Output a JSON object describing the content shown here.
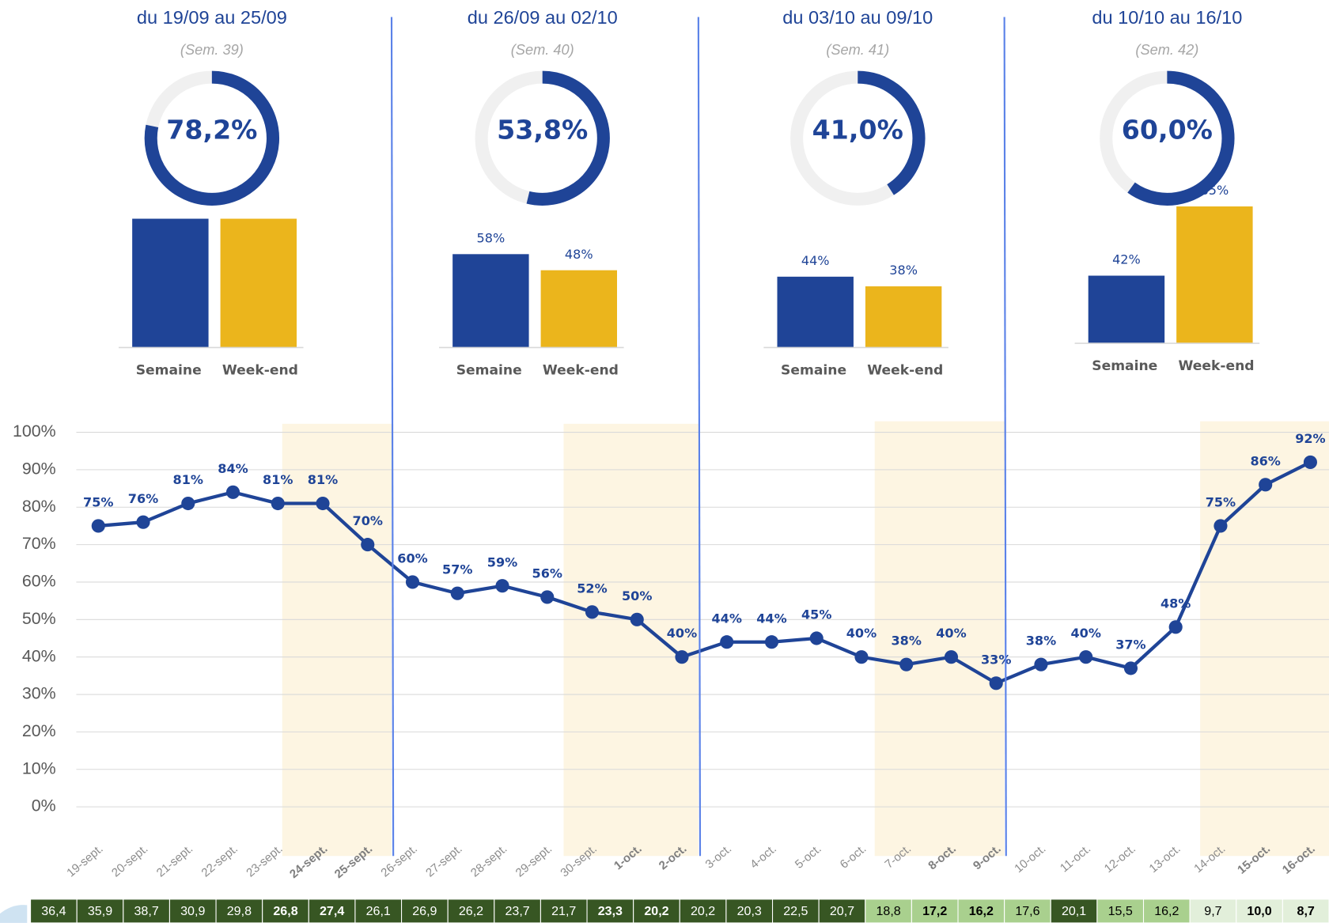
{
  "chart_data": [
    {
      "type": "donut",
      "title": "du 19/09 au 25/09",
      "subtitle": "(Sem. 39)",
      "value": 78.2,
      "value_label": "78,2%",
      "color": "#1f4497"
    },
    {
      "type": "donut",
      "title": "du 26/09 au 02/10",
      "subtitle": "(Sem. 40)",
      "value": 53.8,
      "value_label": "53,8%",
      "color": "#1f4497"
    },
    {
      "type": "donut",
      "title": "du 03/10 au 09/10",
      "subtitle": "(Sem. 41)",
      "value": 41.0,
      "value_label": "41,0%",
      "color": "#1f4497"
    },
    {
      "type": "donut",
      "title": "du 10/10 au 16/10",
      "subtitle": "(Sem. 42)",
      "value": 60.0,
      "value_label": "60,0%",
      "color": "#1f4497"
    },
    {
      "type": "bar",
      "categories": [
        "Semaine",
        "Week-end"
      ],
      "values": [
        80,
        80
      ],
      "colors": [
        "#1f4497",
        "#ebb51c"
      ]
    },
    {
      "type": "bar",
      "categories": [
        "Semaine",
        "Week-end"
      ],
      "values": [
        58,
        48
      ],
      "value_labels": [
        "58%",
        "48%"
      ],
      "colors": [
        "#1f4497",
        "#ebb51c"
      ]
    },
    {
      "type": "bar",
      "categories": [
        "Semaine",
        "Week-end"
      ],
      "values": [
        44,
        38
      ],
      "value_labels": [
        "44%",
        "38%"
      ],
      "colors": [
        "#1f4497",
        "#ebb51c"
      ]
    },
    {
      "type": "bar",
      "categories": [
        "Semaine",
        "Week-end"
      ],
      "values": [
        42,
        85
      ],
      "value_labels": [
        "42%",
        "85%"
      ],
      "colors": [
        "#1f4497",
        "#ebb51c"
      ]
    },
    {
      "type": "line",
      "categories": [
        "19-sept.",
        "20-sept.",
        "21-sept.",
        "22-sept.",
        "23-sept.",
        "24-sept.",
        "25-sept.",
        "26-sept.",
        "27-sept.",
        "28-sept.",
        "29-sept.",
        "30-sept.",
        "1-oct.",
        "2-oct.",
        "3-oct.",
        "4-oct.",
        "5-oct.",
        "6-oct.",
        "7-oct.",
        "8-oct.",
        "9-oct.",
        "10-oct.",
        "11-oct.",
        "12-oct.",
        "13-oct.",
        "14-oct.",
        "15-oct.",
        "16-oct."
      ],
      "values": [
        75,
        76,
        81,
        84,
        81,
        81,
        70,
        60,
        57,
        59,
        56,
        52,
        50,
        40,
        44,
        44,
        45,
        40,
        38,
        40,
        33,
        38,
        40,
        37,
        48,
        75,
        86,
        92
      ],
      "value_labels": [
        "75%",
        "76%",
        "81%",
        "84%",
        "81%",
        "81%",
        "70%",
        "60%",
        "57%",
        "59%",
        "56%",
        "52%",
        "50%",
        "40%",
        "44%",
        "44%",
        "45%",
        "40%",
        "38%",
        "40%",
        "33%",
        "38%",
        "40%",
        "37%",
        "48%",
        "75%",
        "86%",
        "92%"
      ],
      "color": "#1f4497",
      "ylim": [
        0,
        100
      ],
      "yticks": [
        {
          "value": 0,
          "label": "0%"
        },
        {
          "value": 10,
          "label": "10%"
        },
        {
          "value": 20,
          "label": "20%"
        },
        {
          "value": 30,
          "label": "30%"
        },
        {
          "value": 40,
          "label": "40%"
        },
        {
          "value": 50,
          "label": "50%"
        },
        {
          "value": 60,
          "label": "60%"
        },
        {
          "value": 70,
          "label": "70%"
        },
        {
          "value": 80,
          "label": "80%"
        },
        {
          "value": 90,
          "label": "90%"
        },
        {
          "value": 100,
          "label": "100%"
        }
      ],
      "grid": true
    }
  ],
  "table": {
    "cells": [
      "36,4",
      "35,9",
      "38,7",
      "30,9",
      "29,8",
      "26,8",
      "27,4",
      "26,1",
      "26,9",
      "26,2",
      "23,7",
      "21,7",
      "23,3",
      "20,2",
      "20,2",
      "20,3",
      "22,5",
      "20,7",
      "18,8",
      "17,2",
      "16,2",
      "17,6",
      "20,1",
      "15,5",
      "16,2",
      "9,7",
      "10,0",
      "8,7"
    ],
    "colors": [
      "#375623",
      "#375623",
      "#375623",
      "#375623",
      "#375623",
      "#375623",
      "#375623",
      "#375623",
      "#375623",
      "#375623",
      "#375623",
      "#375623",
      "#375623",
      "#375623",
      "#375623",
      "#375623",
      "#375623",
      "#375623",
      "#a9d08e",
      "#a9d08e",
      "#a9d08e",
      "#a9d08e",
      "#375623",
      "#a9d08e",
      "#a9d08e",
      "#e2efda",
      "#e2efda",
      "#e2efda"
    ]
  }
}
